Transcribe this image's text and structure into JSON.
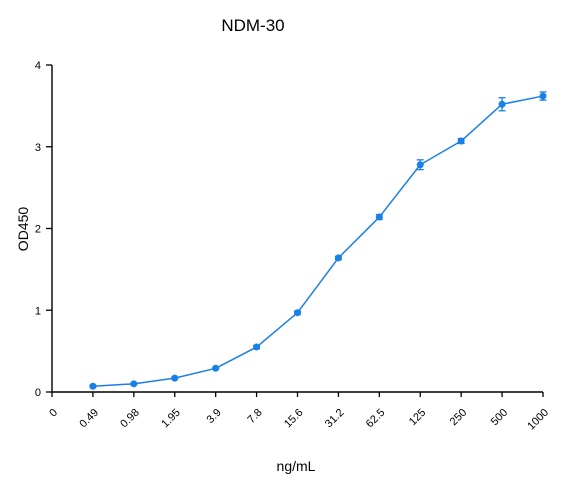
{
  "chart_data": {
    "type": "line",
    "title": "NDM-30",
    "xlabel": "ng/mL",
    "ylabel": "OD450",
    "x_tick_labels": [
      "0",
      "0.49",
      "0.98",
      "1.95",
      "3.9",
      "7.8",
      "15.6",
      "31.2",
      "62.5",
      "125",
      "250",
      "500",
      "1000"
    ],
    "y_ticks": [
      "0",
      "1",
      "2",
      "3",
      "4"
    ],
    "ylim": [
      0,
      4
    ],
    "grid": false,
    "legend": "none",
    "color": "#1a7fe6",
    "series": [
      {
        "x": [
          "0.49",
          "0.98",
          "1.95",
          "3.9",
          "7.8",
          "15.6",
          "31.2",
          "62.5",
          "125",
          "250",
          "500",
          "1000"
        ],
        "y": [
          0.07,
          0.1,
          0.17,
          0.29,
          0.55,
          0.97,
          1.64,
          2.14,
          2.78,
          3.07,
          3.52,
          3.62
        ],
        "error": [
          0.01,
          0.01,
          0.01,
          0.01,
          0.02,
          0.02,
          0.02,
          0.03,
          0.06,
          0.03,
          0.08,
          0.05
        ]
      }
    ]
  }
}
